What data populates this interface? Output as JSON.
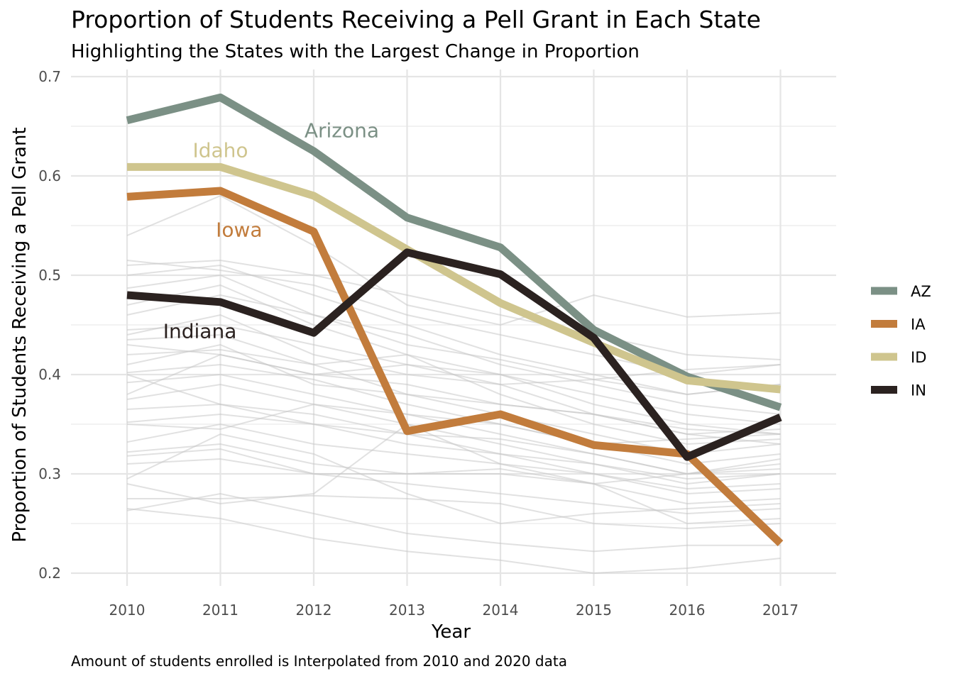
{
  "chart_data": {
    "type": "line",
    "title": "Proportion of Students Receiving a Pell Grant in Each State",
    "subtitle": "Highlighting the States with the Largest Change in Proportion",
    "xlabel": "Year",
    "ylabel": "Proportion of Students Receiving a Pell Grant",
    "caption": "Amount of students enrolled is Interpolated from 2010 and 2020 data",
    "x": [
      2010,
      2011,
      2012,
      2013,
      2014,
      2015,
      2016,
      2017
    ],
    "ylim": [
      0.19,
      0.71
    ],
    "yticks": [
      0.2,
      0.3,
      0.4,
      0.5,
      0.6,
      0.7
    ],
    "grid": true,
    "legend_position": "right",
    "series": [
      {
        "name": "AZ",
        "label": "Arizona",
        "color": "#7b9085",
        "values": [
          0.656,
          0.679,
          0.625,
          0.558,
          0.528,
          0.445,
          0.398,
          0.367
        ]
      },
      {
        "name": "IA",
        "label": "Iowa",
        "color": "#c27c3c",
        "values": [
          0.579,
          0.585,
          0.544,
          0.343,
          0.36,
          0.329,
          0.32,
          0.23
        ]
      },
      {
        "name": "ID",
        "label": "Idaho",
        "color": "#cfc58e",
        "values": [
          0.609,
          0.609,
          0.58,
          0.526,
          0.472,
          0.432,
          0.394,
          0.385
        ]
      },
      {
        "name": "IN",
        "label": "Indiana",
        "color": "#2b2220",
        "values": [
          0.48,
          0.473,
          0.442,
          0.523,
          0.501,
          0.437,
          0.317,
          0.357
        ]
      }
    ],
    "background_series": [
      [
        0.54,
        0.58,
        0.53,
        0.47,
        0.45,
        0.48,
        0.458,
        0.462
      ],
      [
        0.515,
        0.505,
        0.49,
        0.46,
        0.44,
        0.42,
        0.4,
        0.41
      ],
      [
        0.51,
        0.515,
        0.5,
        0.48,
        0.46,
        0.44,
        0.42,
        0.415
      ],
      [
        0.5,
        0.51,
        0.48,
        0.45,
        0.42,
        0.4,
        0.38,
        0.39
      ],
      [
        0.487,
        0.5,
        0.46,
        0.44,
        0.41,
        0.39,
        0.37,
        0.36
      ],
      [
        0.47,
        0.49,
        0.45,
        0.42,
        0.4,
        0.38,
        0.36,
        0.35
      ],
      [
        0.445,
        0.45,
        0.43,
        0.41,
        0.4,
        0.37,
        0.35,
        0.34
      ],
      [
        0.44,
        0.46,
        0.42,
        0.4,
        0.39,
        0.36,
        0.34,
        0.345
      ],
      [
        0.435,
        0.44,
        0.41,
        0.42,
        0.38,
        0.35,
        0.33,
        0.335
      ],
      [
        0.43,
        0.42,
        0.4,
        0.39,
        0.37,
        0.36,
        0.345,
        0.34
      ],
      [
        0.42,
        0.425,
        0.41,
        0.38,
        0.36,
        0.34,
        0.32,
        0.33
      ],
      [
        0.402,
        0.41,
        0.395,
        0.37,
        0.35,
        0.33,
        0.31,
        0.32
      ],
      [
        0.392,
        0.4,
        0.38,
        0.36,
        0.34,
        0.32,
        0.3,
        0.305
      ],
      [
        0.375,
        0.39,
        0.37,
        0.35,
        0.33,
        0.31,
        0.29,
        0.3
      ],
      [
        0.365,
        0.37,
        0.36,
        0.34,
        0.32,
        0.3,
        0.285,
        0.29
      ],
      [
        0.352,
        0.36,
        0.35,
        0.33,
        0.32,
        0.31,
        0.295,
        0.3
      ],
      [
        0.332,
        0.35,
        0.33,
        0.32,
        0.31,
        0.3,
        0.28,
        0.285
      ],
      [
        0.322,
        0.33,
        0.31,
        0.3,
        0.3,
        0.29,
        0.27,
        0.275
      ],
      [
        0.318,
        0.325,
        0.3,
        0.29,
        0.28,
        0.27,
        0.26,
        0.265
      ],
      [
        0.295,
        0.34,
        0.32,
        0.28,
        0.25,
        0.26,
        0.265,
        0.27
      ],
      [
        0.29,
        0.27,
        0.28,
        0.35,
        0.31,
        0.29,
        0.25,
        0.255
      ],
      [
        0.275,
        0.275,
        0.278,
        0.275,
        0.27,
        0.25,
        0.245,
        0.25
      ],
      [
        0.265,
        0.255,
        0.235,
        0.222,
        0.213,
        0.2,
        0.205,
        0.215
      ],
      [
        0.263,
        0.28,
        0.26,
        0.24,
        0.23,
        0.222,
        0.228,
        0.228
      ],
      [
        0.38,
        0.42,
        0.4,
        0.41,
        0.39,
        0.395,
        0.405,
        0.41
      ],
      [
        0.4,
        0.37,
        0.35,
        0.34,
        0.335,
        0.32,
        0.3,
        0.315
      ],
      [
        0.41,
        0.43,
        0.39,
        0.38,
        0.37,
        0.36,
        0.34,
        0.33
      ],
      [
        0.46,
        0.48,
        0.46,
        0.43,
        0.415,
        0.395,
        0.38,
        0.39
      ],
      [
        0.35,
        0.345,
        0.37,
        0.36,
        0.35,
        0.33,
        0.335,
        0.34
      ],
      [
        0.31,
        0.315,
        0.3,
        0.3,
        0.305,
        0.29,
        0.3,
        0.31
      ]
    ]
  }
}
